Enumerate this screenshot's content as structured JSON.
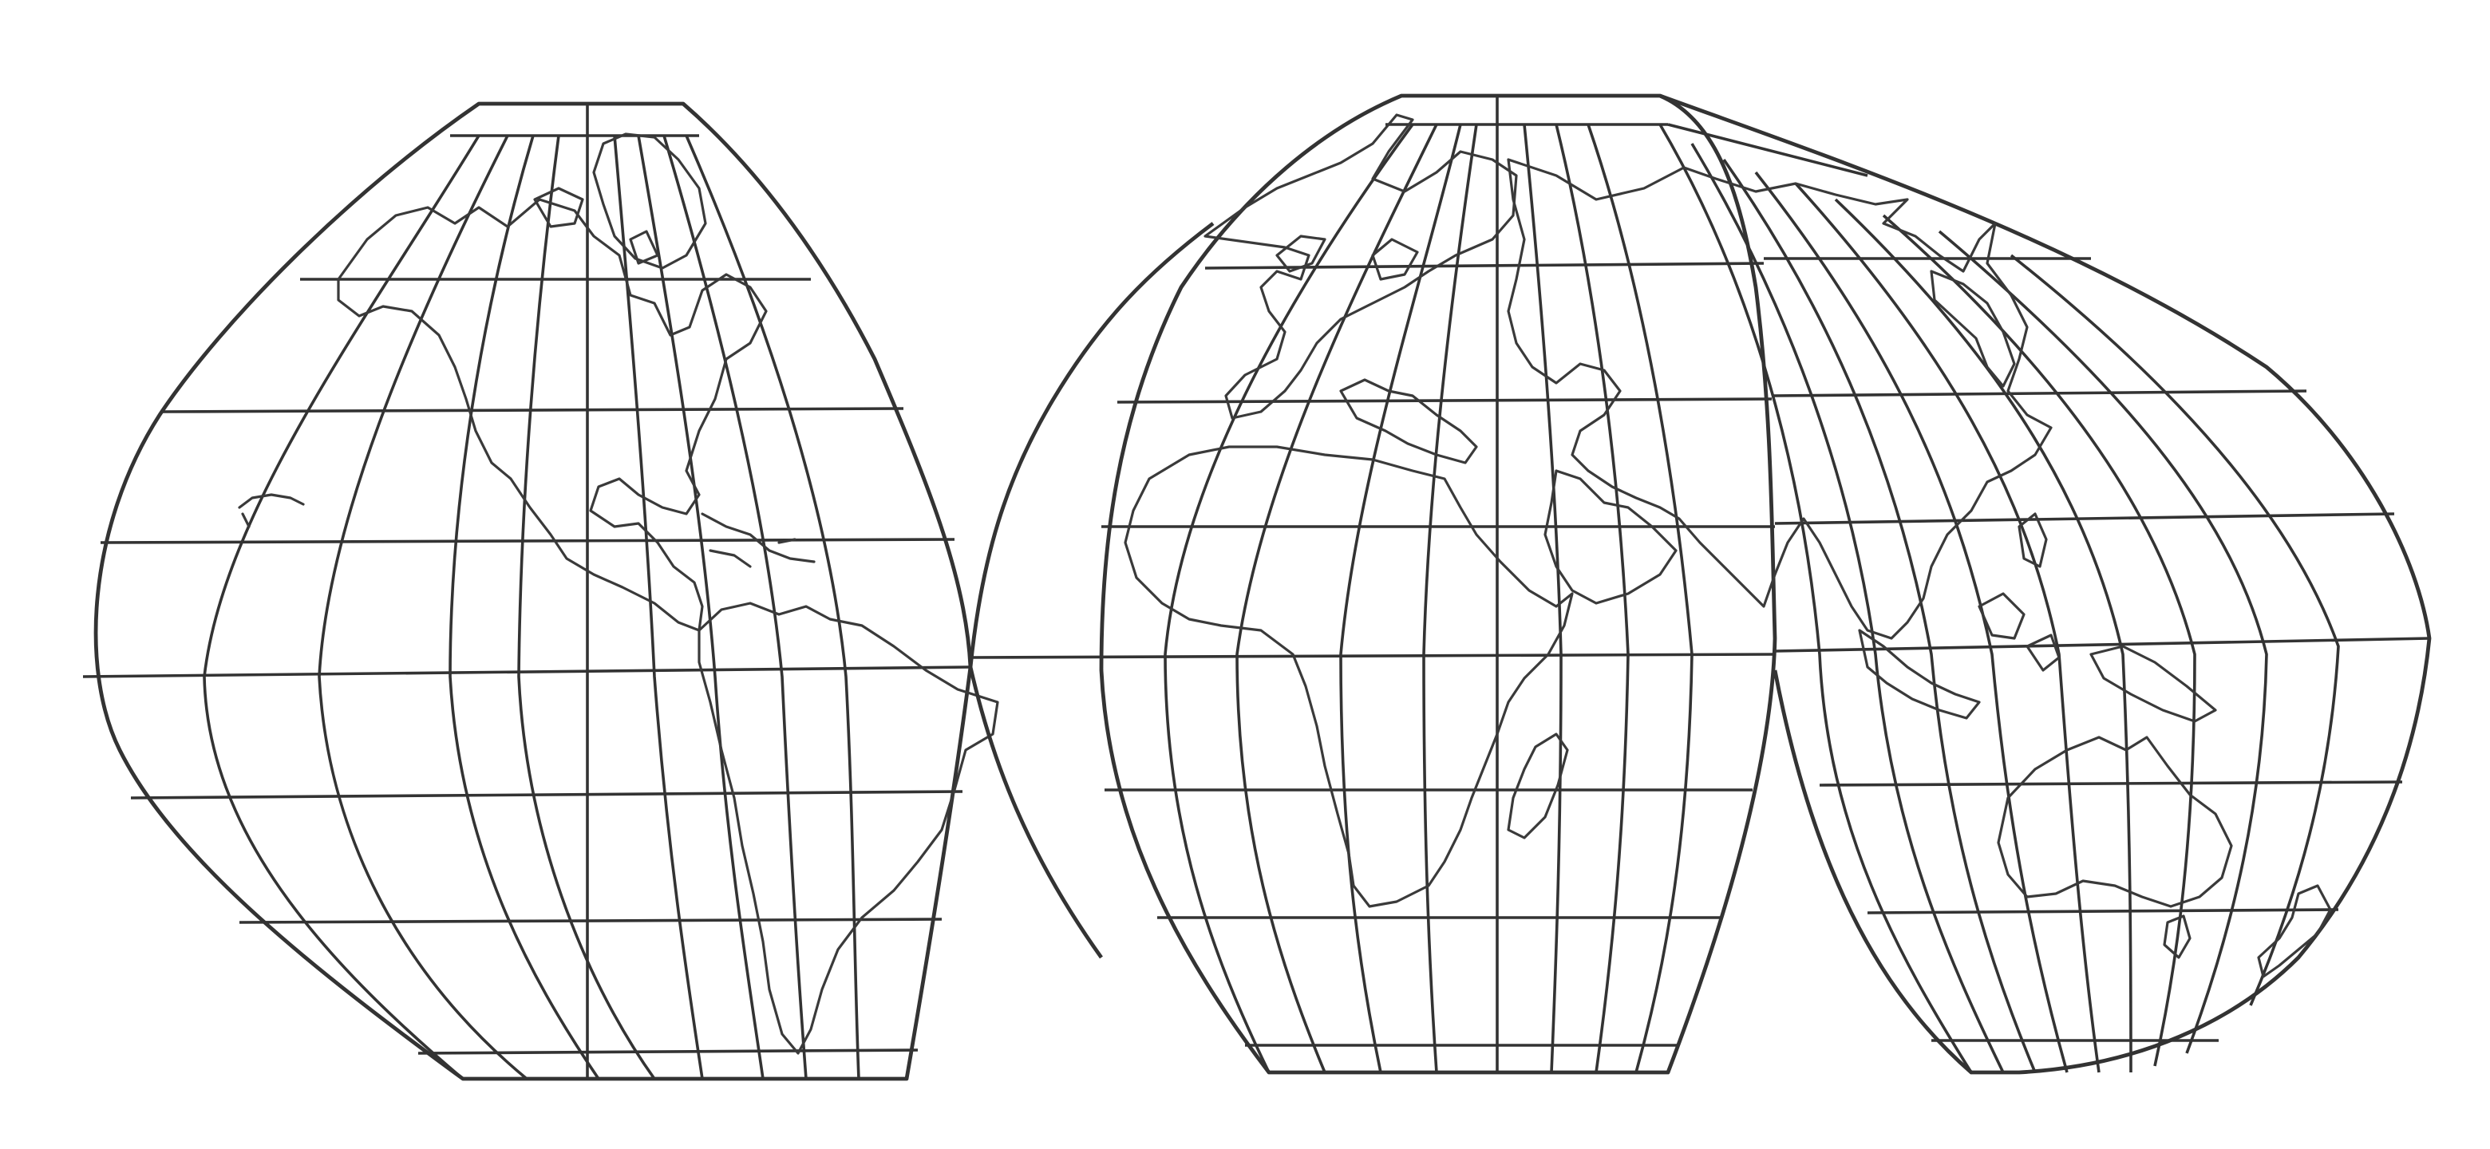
{
  "map": {
    "lobes": [
      {
        "name": "americas-lobe"
      },
      {
        "name": "europe-africa-lobe"
      },
      {
        "name": "asia-australia-lobe"
      }
    ],
    "landmasses": [
      "north-america",
      "greenland",
      "central-america-caribbean",
      "south-america",
      "europe",
      "africa",
      "madagascar",
      "arabian-peninsula",
      "asia",
      "southeast-asia",
      "australia",
      "new-zealand",
      "japan"
    ],
    "colors": {
      "line": "#333333",
      "coast": "#3a3a3a",
      "background": "#ffffff"
    }
  }
}
